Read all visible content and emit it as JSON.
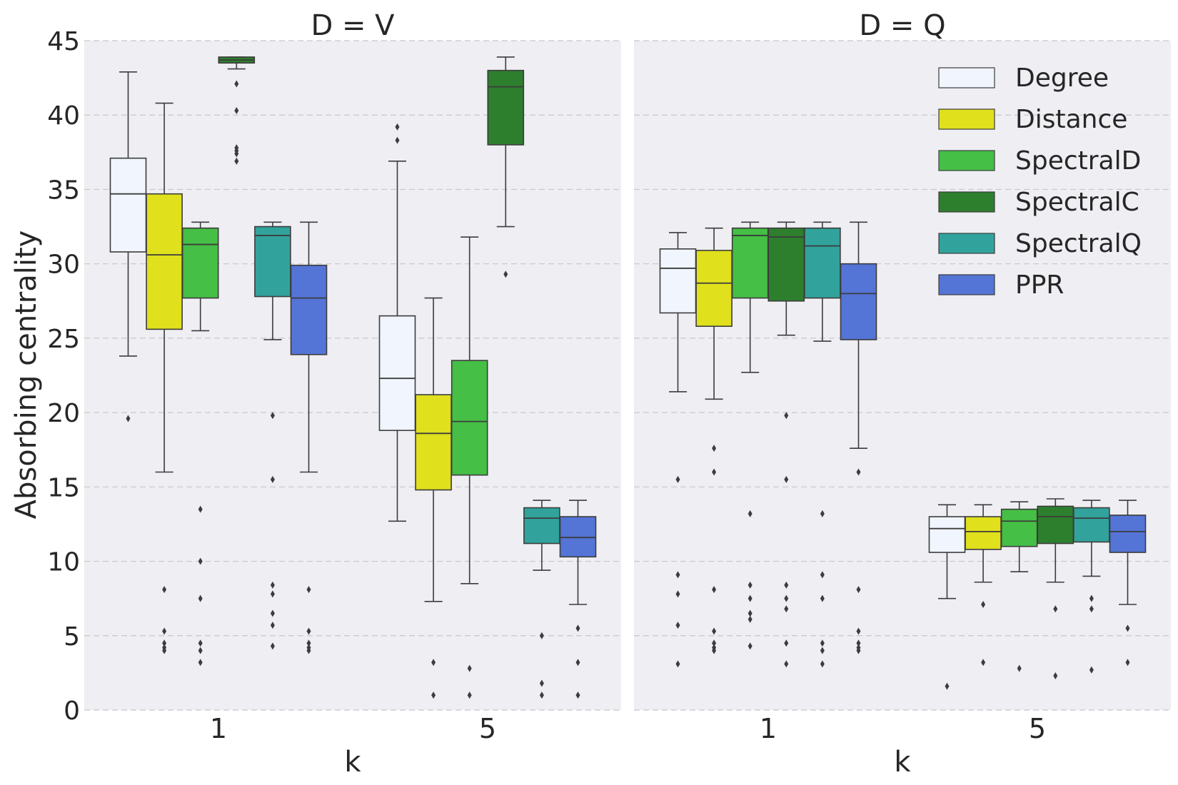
{
  "chart_data": {
    "type": "box",
    "ylabel": "Absorbing centrality",
    "xlabel": "k",
    "ylim": [
      0,
      45
    ],
    "yticks": [
      0,
      5,
      10,
      15,
      20,
      25,
      30,
      35,
      40,
      45
    ],
    "grid": "y-dashed",
    "legend_position": "top-right",
    "legend_panel": 1,
    "series": [
      {
        "name": "Degree",
        "color": "#f0f5fe"
      },
      {
        "name": "Distance",
        "color": "#e0e01c"
      },
      {
        "name": "SpectralD",
        "color": "#45bf45"
      },
      {
        "name": "SpectralC",
        "color": "#2d7f2d"
      },
      {
        "name": "SpectralQ",
        "color": "#31a39c"
      },
      {
        "name": "PPR",
        "color": "#5474d6"
      }
    ],
    "panels": [
      {
        "title": "D = V",
        "categories": [
          "1",
          "5"
        ],
        "boxes": [
          [
            {
              "series": "Degree",
              "q1": 30.8,
              "median": 34.7,
              "q3": 37.1,
              "whislo": 23.8,
              "whishi": 42.9,
              "fliers": [
                19.6
              ]
            },
            {
              "series": "Distance",
              "q1": 25.6,
              "median": 30.6,
              "q3": 34.7,
              "whislo": 16.0,
              "whishi": 40.8,
              "fliers": [
                8.1,
                5.3,
                4.5,
                4.2,
                4.0
              ]
            },
            {
              "series": "SpectralD",
              "q1": 27.7,
              "median": 31.3,
              "q3": 32.4,
              "whislo": 25.5,
              "whishi": 32.8,
              "fliers": [
                13.5,
                10.0,
                7.5,
                4.5,
                4.0,
                3.2
              ]
            },
            {
              "series": "SpectralC",
              "q1": 43.5,
              "median": 43.7,
              "q3": 43.9,
              "whislo": 43.1,
              "whishi": 43.9,
              "fliers": [
                42.1,
                40.3,
                37.8,
                37.6,
                37.4,
                36.9
              ]
            },
            {
              "series": "SpectralQ",
              "q1": 27.8,
              "median": 31.9,
              "q3": 32.5,
              "whislo": 24.9,
              "whishi": 32.8,
              "fliers": [
                19.8,
                15.5,
                8.4,
                7.8,
                6.5,
                5.7,
                4.3
              ]
            },
            {
              "series": "PPR",
              "q1": 23.9,
              "median": 27.7,
              "q3": 29.9,
              "whislo": 16.0,
              "whishi": 32.8,
              "fliers": [
                8.1,
                5.3,
                4.5,
                4.2,
                4.0
              ]
            }
          ],
          [
            {
              "series": "Degree",
              "q1": 18.8,
              "median": 22.3,
              "q3": 26.5,
              "whislo": 12.7,
              "whishi": 36.9,
              "fliers": [
                39.2,
                38.3
              ]
            },
            {
              "series": "Distance",
              "q1": 14.8,
              "median": 18.6,
              "q3": 21.2,
              "whislo": 7.3,
              "whishi": 27.7,
              "fliers": [
                3.2,
                1.0
              ]
            },
            {
              "series": "SpectralD",
              "q1": 15.8,
              "median": 19.4,
              "q3": 23.5,
              "whislo": 8.5,
              "whishi": 31.8,
              "fliers": [
                2.8,
                1.0
              ]
            },
            {
              "series": "SpectralC",
              "q1": 38.0,
              "median": 41.9,
              "q3": 43.0,
              "whislo": 32.5,
              "whishi": 43.9,
              "fliers": [
                29.3
              ]
            },
            {
              "series": "SpectralQ",
              "q1": 11.2,
              "median": 12.9,
              "q3": 13.6,
              "whislo": 9.4,
              "whishi": 14.1,
              "fliers": [
                5.0,
                1.8,
                1.0
              ]
            },
            {
              "series": "PPR",
              "q1": 10.3,
              "median": 11.6,
              "q3": 13.0,
              "whislo": 7.1,
              "whishi": 14.1,
              "fliers": [
                5.5,
                3.2,
                1.0
              ]
            }
          ]
        ]
      },
      {
        "title": "D = Q",
        "categories": [
          "1",
          "5"
        ],
        "boxes": [
          [
            {
              "series": "Degree",
              "q1": 26.7,
              "median": 29.7,
              "q3": 31.0,
              "whislo": 21.4,
              "whishi": 32.1,
              "fliers": [
                15.5,
                9.1,
                7.8,
                5.7,
                3.1
              ]
            },
            {
              "series": "Distance",
              "q1": 25.8,
              "median": 28.7,
              "q3": 30.9,
              "whislo": 20.9,
              "whishi": 32.4,
              "fliers": [
                17.6,
                16.0,
                8.1,
                5.3,
                4.5,
                4.2,
                4.0
              ]
            },
            {
              "series": "SpectralD",
              "q1": 27.7,
              "median": 31.9,
              "q3": 32.4,
              "whislo": 22.7,
              "whishi": 32.8,
              "fliers": [
                13.2,
                8.4,
                7.5,
                6.5,
                6.1,
                4.3
              ]
            },
            {
              "series": "SpectralC",
              "q1": 27.5,
              "median": 31.8,
              "q3": 32.4,
              "whislo": 25.2,
              "whishi": 32.8,
              "fliers": [
                19.8,
                15.5,
                8.4,
                7.5,
                6.8,
                4.5,
                3.1
              ]
            },
            {
              "series": "SpectralQ",
              "q1": 27.7,
              "median": 31.2,
              "q3": 32.4,
              "whislo": 24.8,
              "whishi": 32.8,
              "fliers": [
                13.2,
                9.1,
                7.5,
                4.5,
                4.0,
                3.1
              ]
            },
            {
              "series": "PPR",
              "q1": 24.9,
              "median": 28.0,
              "q3": 30.0,
              "whislo": 17.6,
              "whishi": 32.8,
              "fliers": [
                16.0,
                8.1,
                5.3,
                4.5,
                4.2,
                4.0
              ]
            }
          ],
          [
            {
              "series": "Degree",
              "q1": 10.6,
              "median": 12.2,
              "q3": 13.0,
              "whislo": 7.5,
              "whishi": 13.8,
              "fliers": [
                1.6
              ]
            },
            {
              "series": "Distance",
              "q1": 10.8,
              "median": 12.0,
              "q3": 13.0,
              "whislo": 8.6,
              "whishi": 13.8,
              "fliers": [
                7.1,
                3.2
              ]
            },
            {
              "series": "SpectralD",
              "q1": 11.0,
              "median": 12.7,
              "q3": 13.5,
              "whislo": 9.3,
              "whishi": 14.0,
              "fliers": [
                2.8
              ]
            },
            {
              "series": "SpectralC",
              "q1": 11.2,
              "median": 13.0,
              "q3": 13.7,
              "whislo": 8.6,
              "whishi": 14.2,
              "fliers": [
                6.8,
                2.3
              ]
            },
            {
              "series": "SpectralQ",
              "q1": 11.3,
              "median": 12.9,
              "q3": 13.6,
              "whislo": 9.0,
              "whishi": 14.1,
              "fliers": [
                7.5,
                6.8,
                2.7
              ]
            },
            {
              "series": "PPR",
              "q1": 10.6,
              "median": 12.0,
              "q3": 13.1,
              "whislo": 7.1,
              "whishi": 14.1,
              "fliers": [
                5.5,
                3.2
              ]
            }
          ]
        ]
      }
    ]
  }
}
